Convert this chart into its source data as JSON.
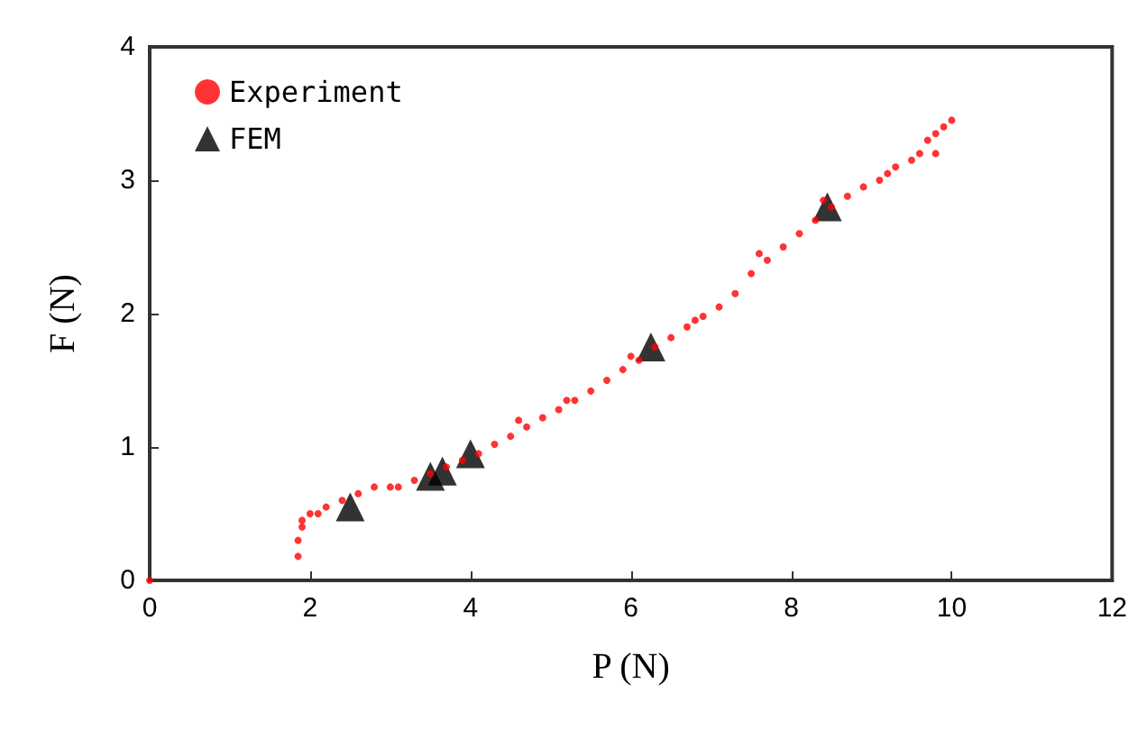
{
  "chart_data": {
    "type": "scatter",
    "xlabel": "P (N)",
    "ylabel": "F (N)",
    "xlim": [
      0,
      12
    ],
    "ylim": [
      0,
      4
    ],
    "xticks": [
      0,
      2,
      4,
      6,
      8,
      10,
      12
    ],
    "yticks": [
      0,
      1,
      2,
      3,
      4
    ],
    "grid": false,
    "legend": "top left",
    "series": [
      {
        "name": "Experiment",
        "color": "#ff0000",
        "marker": "circle",
        "x": [
          0,
          1.85,
          1.85,
          1.9,
          1.9,
          2.0,
          2.1,
          2.2,
          2.4,
          2.6,
          2.8,
          3.0,
          3.1,
          3.3,
          3.5,
          3.7,
          3.9,
          4.1,
          4.3,
          4.5,
          4.7,
          4.9,
          5.1,
          5.3,
          5.5,
          5.7,
          5.9,
          6.1,
          6.3,
          6.5,
          6.7,
          6.9,
          7.1,
          7.3,
          7.5,
          7.7,
          7.9,
          8.1,
          8.3,
          8.5,
          8.7,
          8.9,
          9.1,
          9.3,
          9.5,
          9.6,
          9.7,
          9.8,
          9.9,
          10.0,
          4.6,
          5.2,
          6.0,
          6.8,
          7.6,
          8.4,
          9.2,
          9.8
        ],
        "values": [
          0,
          0.18,
          0.3,
          0.4,
          0.45,
          0.5,
          0.5,
          0.55,
          0.6,
          0.65,
          0.7,
          0.7,
          0.7,
          0.75,
          0.8,
          0.85,
          0.9,
          0.95,
          1.02,
          1.08,
          1.15,
          1.22,
          1.28,
          1.35,
          1.42,
          1.5,
          1.58,
          1.65,
          1.75,
          1.82,
          1.9,
          1.98,
          2.05,
          2.15,
          2.3,
          2.4,
          2.5,
          2.6,
          2.7,
          2.8,
          2.88,
          2.95,
          3.0,
          3.1,
          3.15,
          3.2,
          3.3,
          3.35,
          3.4,
          3.45,
          1.2,
          1.35,
          1.68,
          1.95,
          2.45,
          2.85,
          3.05,
          3.2
        ]
      },
      {
        "name": "FEM",
        "color": "#000000",
        "marker": "triangle",
        "x": [
          2.5,
          3.5,
          3.65,
          4.0,
          6.25,
          8.45
        ],
        "values": [
          0.55,
          0.78,
          0.82,
          0.95,
          1.75,
          2.8
        ]
      }
    ]
  }
}
